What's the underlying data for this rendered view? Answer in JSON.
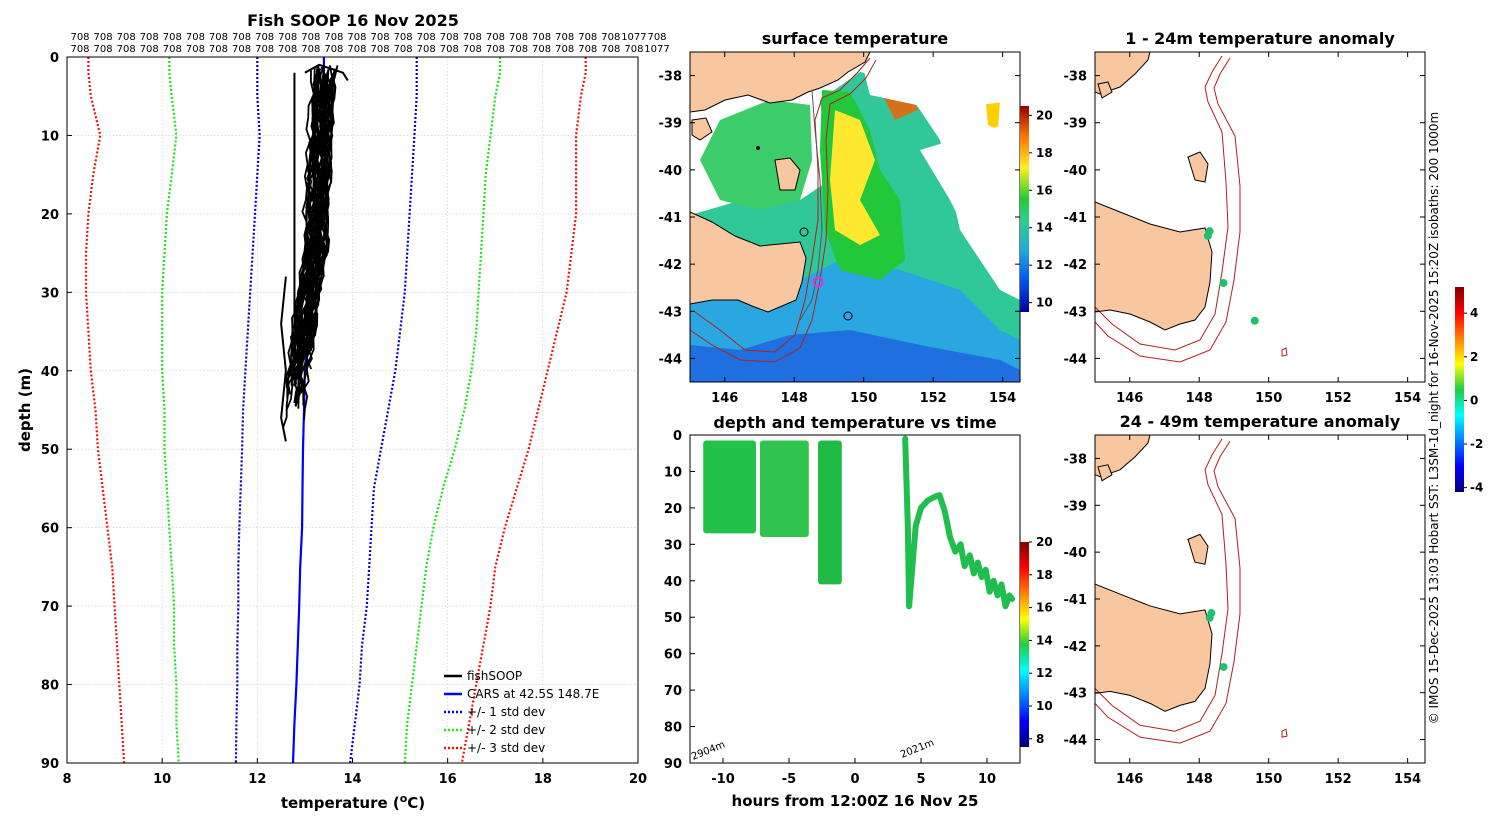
{
  "colors": {
    "land": "#f9c79f",
    "cars": "#0000ff",
    "sd1": "#0000cc",
    "sd2": "#22dd22",
    "sd3": "#ee1111",
    "isobath": "#b02020",
    "fishsoop": "#000000",
    "marker_magenta": "#dd33dd"
  },
  "chart_data": [
    {
      "id": "profile",
      "type": "line",
      "title": "Fish SOOP 16 Nov 2025",
      "xlabel": "temperature (°C)",
      "ylabel": "depth (m)",
      "xlim": [
        8,
        20
      ],
      "ylim": [
        90,
        0
      ],
      "xticks": [
        "8",
        "10",
        "12",
        "14",
        "16",
        "18",
        "20"
      ],
      "yticks": [
        "0",
        "10",
        "20",
        "30",
        "40",
        "50",
        "60",
        "70",
        "80",
        "90"
      ],
      "grid": true,
      "legend_position": "bottom-right",
      "legend": [
        "fishSOOP",
        "CARS at 42.5S 148.7E",
        "+/- 1 std dev",
        "+/- 2 std dev",
        "+/- 3 std dev"
      ],
      "header_row1": [
        "708",
        "708",
        "708",
        "708",
        "708",
        "708",
        "708",
        "708",
        "708",
        "708",
        "708",
        "708",
        "708",
        "708",
        "708",
        "708",
        "708",
        "708",
        "708",
        "708",
        "708",
        "708",
        "708",
        "708",
        "1077",
        "708"
      ],
      "header_row2": [
        "708",
        "708",
        "708",
        "708",
        "708",
        "708",
        "708",
        "708",
        "708",
        "708",
        "708",
        "708",
        "708",
        "708",
        "708",
        "708",
        "708",
        "708",
        "708",
        "708",
        "708",
        "708",
        "708",
        "708",
        "708",
        "1077"
      ],
      "depths": [
        0,
        2,
        5,
        10,
        15,
        20,
        25,
        30,
        35,
        40,
        45,
        50,
        55,
        60,
        65,
        70,
        75,
        80,
        85,
        90
      ],
      "series": [
        {
          "name": "CARS mean",
          "values": [
            13.4,
            13.4,
            13.45,
            13.45,
            13.4,
            13.3,
            13.2,
            13.1,
            13.05,
            13.0,
            12.98,
            12.96,
            12.95,
            12.94,
            12.9,
            12.88,
            12.85,
            12.82,
            12.78,
            12.75
          ]
        },
        {
          "name": "-1 sd",
          "values": [
            12.0,
            12.0,
            12.0,
            12.05,
            12.0,
            11.95,
            11.9,
            11.85,
            11.8,
            11.75,
            11.7,
            11.68,
            11.65,
            11.62,
            11.6,
            11.6,
            11.58,
            11.58,
            11.56,
            11.55
          ]
        },
        {
          "name": "+1 sd",
          "values": [
            15.35,
            15.35,
            15.35,
            15.3,
            15.25,
            15.2,
            15.15,
            15.1,
            15.0,
            14.9,
            14.75,
            14.6,
            14.45,
            14.4,
            14.35,
            14.3,
            14.2,
            14.15,
            14.05,
            13.95
          ]
        },
        {
          "name": "-2 sd",
          "values": [
            10.15,
            10.15,
            10.2,
            10.3,
            10.2,
            10.1,
            10.05,
            10.0,
            10.0,
            10.0,
            10.05,
            10.05,
            10.1,
            10.15,
            10.2,
            10.25,
            10.25,
            10.3,
            10.3,
            10.35
          ]
        },
        {
          "name": "+2 sd",
          "values": [
            17.1,
            17.1,
            17.0,
            16.9,
            16.8,
            16.75,
            16.7,
            16.65,
            16.6,
            16.5,
            16.35,
            16.15,
            15.9,
            15.7,
            15.55,
            15.45,
            15.35,
            15.25,
            15.15,
            15.1
          ]
        },
        {
          "name": "-3 sd",
          "values": [
            8.45,
            8.45,
            8.5,
            8.7,
            8.55,
            8.45,
            8.4,
            8.4,
            8.45,
            8.5,
            8.6,
            8.65,
            8.75,
            8.85,
            8.95,
            9.0,
            9.05,
            9.1,
            9.15,
            9.2
          ]
        },
        {
          "name": "+3 sd",
          "values": [
            18.9,
            18.9,
            18.8,
            18.7,
            18.7,
            18.7,
            18.6,
            18.5,
            18.3,
            18.1,
            17.9,
            17.7,
            17.45,
            17.2,
            17.0,
            16.9,
            16.75,
            16.6,
            16.45,
            16.3
          ]
        }
      ],
      "fishsoop_range": {
        "t_min": 12.5,
        "t_max": 13.9,
        "depth_min": 1,
        "depth_max": 49
      }
    },
    {
      "id": "sst",
      "type": "heatmap",
      "title": "surface temperature",
      "xlim": [
        145,
        154.5
      ],
      "ylim": [
        -44.5,
        -37.5
      ],
      "xticks": [
        "146",
        "148",
        "150",
        "152",
        "154"
      ],
      "yticks": [
        "-38",
        "-39",
        "-40",
        "-41",
        "-42",
        "-43",
        "-44"
      ],
      "colorbar": {
        "min": 9.5,
        "max": 20.5,
        "ticks": [
          "10",
          "12",
          "14",
          "16",
          "18",
          "20"
        ]
      }
    },
    {
      "id": "timeseries",
      "type": "scatter",
      "title": "depth and temperature vs time",
      "xlabel": "hours from 12:00Z 16 Nov 25",
      "xlim": [
        -12.5,
        12.5
      ],
      "ylim": [
        90,
        0
      ],
      "xticks": [
        "-10",
        "-5",
        "0",
        "5",
        "10"
      ],
      "yticks": [
        "0",
        "10",
        "20",
        "30",
        "40",
        "50",
        "60",
        "70",
        "80",
        "90"
      ],
      "annotations": [
        "2904m",
        "2021m"
      ],
      "colorbar": {
        "min": 7.5,
        "max": 20.0,
        "ticks": [
          "8",
          "10",
          "12",
          "14",
          "16",
          "18",
          "20"
        ]
      },
      "blocks": [
        {
          "t0": -11.5,
          "t1": -7.5,
          "dmax": 27
        },
        {
          "t0": -7.2,
          "t1": -3.5,
          "dmax": 28
        },
        {
          "t0": -2.8,
          "t1": -1.0,
          "dmax": 41
        }
      ],
      "profile_trace": [
        [
          3.8,
          1
        ],
        [
          4.0,
          25
        ],
        [
          4.1,
          47
        ],
        [
          4.3,
          38
        ],
        [
          4.6,
          25
        ],
        [
          5.0,
          20
        ],
        [
          5.5,
          18
        ],
        [
          6.0,
          17
        ],
        [
          6.4,
          16.5
        ],
        [
          6.8,
          21
        ],
        [
          7.2,
          28
        ],
        [
          7.6,
          32
        ],
        [
          8.0,
          30
        ],
        [
          8.3,
          36
        ],
        [
          8.7,
          33
        ],
        [
          9.0,
          38
        ],
        [
          9.3,
          35
        ],
        [
          9.6,
          39
        ],
        [
          9.9,
          37
        ],
        [
          10.2,
          43
        ],
        [
          10.5,
          40
        ],
        [
          10.8,
          44
        ],
        [
          11.1,
          41
        ],
        [
          11.4,
          47
        ],
        [
          11.7,
          44
        ],
        [
          11.9,
          45
        ]
      ]
    },
    {
      "id": "anom1",
      "type": "scatter",
      "title": "1 - 24m temperature anomaly",
      "xlim": [
        145,
        154.5
      ],
      "ylim": [
        -44.5,
        -37.5
      ],
      "xticks": [
        "146",
        "148",
        "150",
        "152",
        "154"
      ],
      "yticks": [
        "-38",
        "-39",
        "-40",
        "-41",
        "-42",
        "-43",
        "-44"
      ],
      "colorbar": {
        "min": -4.2,
        "max": 5.2,
        "ticks": [
          "4",
          "2",
          "0",
          "-2",
          "-4"
        ]
      },
      "points": [
        [
          148.3,
          -41.3,
          0.3
        ],
        [
          148.25,
          -41.4,
          0.3
        ],
        [
          148.7,
          -42.4,
          0.4
        ],
        [
          149.6,
          -43.2,
          0.4
        ]
      ],
      "side_text": "© IMOS 15-Dec-2025 13:03 Hobart SST: L3SM-1d_night for 16-Nov-2025 15:20Z isobaths: 200  1000m"
    },
    {
      "id": "anom2",
      "type": "scatter",
      "title": "24 - 49m temperature anomaly",
      "xlim": [
        145,
        154.5
      ],
      "ylim": [
        -44.5,
        -37.5
      ],
      "xticks": [
        "146",
        "148",
        "150",
        "152",
        "154"
      ],
      "yticks": [
        "-38",
        "-39",
        "-40",
        "-41",
        "-42",
        "-43",
        "-44"
      ],
      "points": [
        [
          148.35,
          -41.3,
          0.4
        ],
        [
          148.3,
          -41.4,
          0.4
        ],
        [
          148.7,
          -42.45,
          0.5
        ]
      ]
    }
  ]
}
